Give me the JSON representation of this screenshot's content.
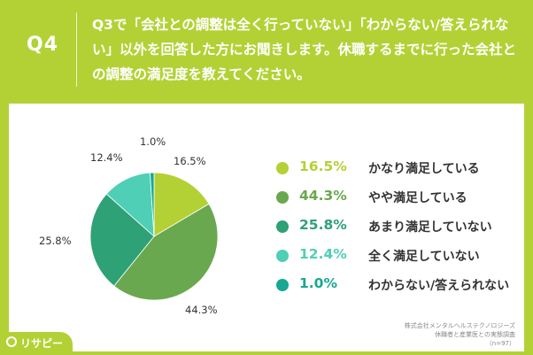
{
  "header": {
    "qnum": "Q4",
    "question": "Q3で「会社との調整は全く行っていない」「わからない/答えられない」以外を回答した方にお聞きします。休職するまでに行った会社との調整の満足度を教えてください。"
  },
  "chart_data": {
    "type": "pie",
    "categories": [
      "かなり満足している",
      "やや満足している",
      "あまり満足していない",
      "全く満足していない",
      "わからない/答えられない"
    ],
    "values": [
      16.5,
      44.3,
      25.8,
      12.4,
      1.0
    ],
    "value_labels": [
      "16.5%",
      "44.3%",
      "25.8%",
      "12.4%",
      "1.0%"
    ],
    "colors": [
      "#b3d135",
      "#6aa84f",
      "#2ea176",
      "#4fcfb5",
      "#17a892"
    ],
    "legend_position": "right",
    "start": "top, clockwise"
  },
  "source": {
    "line1": "株式会社メンタルヘルステクノロジーズ",
    "line2": "休職者と産業医との実態調査",
    "line3": "（n=97）"
  },
  "logo": {
    "text": "リサピー"
  },
  "icons": {
    "logo_icon": "search-icon"
  }
}
